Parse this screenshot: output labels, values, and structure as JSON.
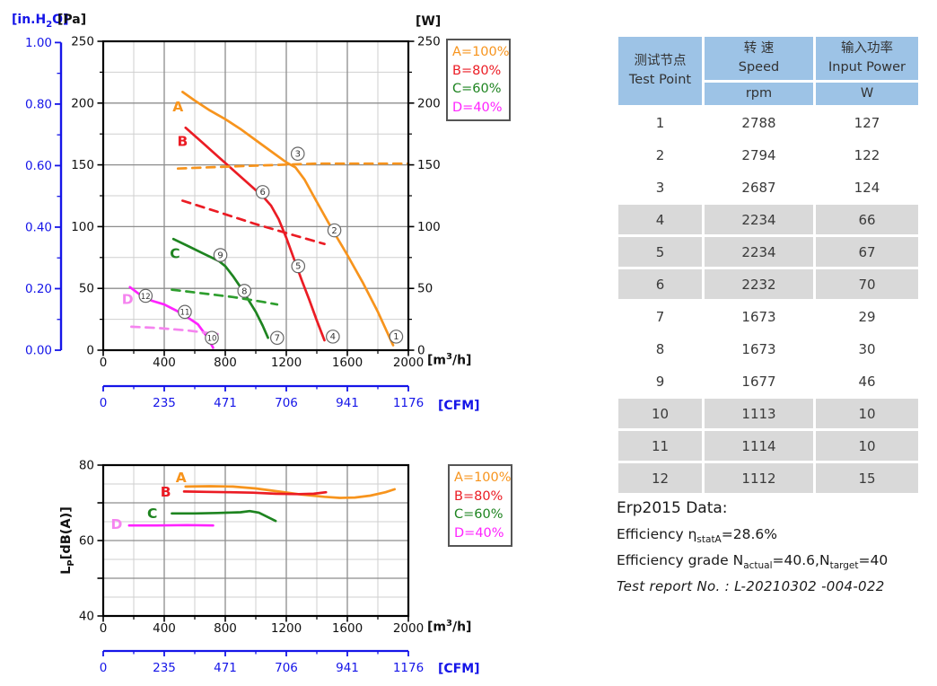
{
  "colors": {
    "blue_axis": "#1515E8",
    "orange": "#F7941D",
    "red": "#EB1C24",
    "green": "#1E8420",
    "magenta": "#FF22FF",
    "magenta_light": "#F584EF",
    "grid_minor": "#CFCFCF",
    "grid_major": "#8D8D8D",
    "table_header_bg": "#9DC3E6",
    "table_row_alt_bg": "#D9D9D9"
  },
  "units": {
    "inh2o_pre": "[in.H",
    "inh2o_sub": "2",
    "inh2o_post": "O]",
    "pa": "[Pa]",
    "w": "[W]",
    "flow_pre": "[m",
    "flow_sup": "3",
    "flow_post": "/h]",
    "cfm": "[CFM]",
    "noise_pre": "L",
    "noise_sub": "P",
    "noise_post": "[dB(A)]"
  },
  "legend": {
    "items": [
      {
        "label": "A=100%",
        "color": "#F7941D"
      },
      {
        "label": "B=80%",
        "color": "#EB1C24"
      },
      {
        "label": "C=60%",
        "color": "#1E8420"
      },
      {
        "label": "D=40%",
        "color": "#FF22FF"
      }
    ]
  },
  "chart_data": [
    {
      "id": "pressure-flow-power",
      "type": "line",
      "x": {
        "label": "[m3/h]",
        "min": 0,
        "max": 2000,
        "major_ticks": [
          0,
          400,
          800,
          1200,
          1600,
          2000
        ],
        "minor_step": 200
      },
      "y_pressure_pa": {
        "label": "[Pa]",
        "min": 0,
        "max": 250,
        "major_ticks": [
          0,
          50,
          100,
          150,
          200,
          250
        ],
        "minor_step": 25
      },
      "y_pressure_inh2o": {
        "label": "[in.H2O]",
        "tick_labels": [
          "0.00",
          "0.20",
          "0.40",
          "0.60",
          "0.80",
          "1.00"
        ],
        "pa_per_inh2o": 249
      },
      "y_power_w": {
        "label": "[W]",
        "min": 0,
        "max": 250,
        "major_ticks": [
          0,
          50,
          100,
          150,
          200,
          250
        ]
      },
      "x_cfm": {
        "label": "[CFM]",
        "ticks": [
          0,
          235,
          471,
          706,
          941,
          1176
        ]
      },
      "grid": "minor+major",
      "series": [
        {
          "name": "A",
          "role": "pressure",
          "line": "solid",
          "color": "#F7941D",
          "points": [
            [
              520,
              209
            ],
            [
              600,
              202
            ],
            [
              700,
              194
            ],
            [
              800,
              187
            ],
            [
              900,
              179
            ],
            [
              1000,
              170
            ],
            [
              1100,
              161
            ],
            [
              1200,
              152
            ],
            [
              1260,
              148
            ],
            [
              1320,
              138
            ],
            [
              1400,
              120
            ],
            [
              1500,
              98
            ],
            [
              1600,
              77
            ],
            [
              1700,
              55
            ],
            [
              1800,
              31
            ],
            [
              1900,
              4
            ]
          ]
        },
        {
          "name": "B",
          "role": "pressure",
          "line": "solid",
          "color": "#EB1C24",
          "points": [
            [
              540,
              180
            ],
            [
              650,
              168
            ],
            [
              750,
              157
            ],
            [
              850,
              146
            ],
            [
              950,
              135
            ],
            [
              1050,
              124
            ],
            [
              1100,
              117
            ],
            [
              1150,
              106
            ],
            [
              1200,
              91
            ],
            [
              1250,
              74
            ],
            [
              1300,
              57
            ],
            [
              1350,
              41
            ],
            [
              1400,
              24
            ],
            [
              1450,
              8
            ]
          ]
        },
        {
          "name": "C",
          "role": "pressure",
          "line": "solid",
          "color": "#1E8420",
          "points": [
            [
              460,
              90
            ],
            [
              560,
              84
            ],
            [
              660,
              78
            ],
            [
              760,
              72
            ],
            [
              800,
              68
            ],
            [
              850,
              60
            ],
            [
              900,
              51
            ],
            [
              950,
              41
            ],
            [
              1000,
              31
            ],
            [
              1045,
              20
            ],
            [
              1080,
              10
            ]
          ]
        },
        {
          "name": "D",
          "role": "pressure",
          "line": "solid",
          "color": "#FF22FF",
          "points": [
            [
              175,
              51
            ],
            [
              240,
              45
            ],
            [
              320,
              40
            ],
            [
              400,
              37
            ],
            [
              480,
              32
            ],
            [
              560,
              26
            ],
            [
              620,
              21
            ],
            [
              680,
              11
            ],
            [
              720,
              2
            ]
          ]
        },
        {
          "name": "A-power",
          "role": "power",
          "line": "dashed",
          "color": "#F7941D",
          "points": [
            [
              490,
              147
            ],
            [
              900,
              149
            ],
            [
              1400,
              151
            ],
            [
              2000,
              151
            ]
          ]
        },
        {
          "name": "B-power",
          "role": "power",
          "line": "dashed",
          "color": "#EB1C24",
          "points": [
            [
              520,
              121
            ],
            [
              750,
              112
            ],
            [
              1000,
              102
            ],
            [
              1250,
              93
            ],
            [
              1450,
              86
            ]
          ]
        },
        {
          "name": "C-power",
          "role": "power",
          "line": "dashed",
          "color": "#2E9E2E",
          "points": [
            [
              450,
              49
            ],
            [
              650,
              46
            ],
            [
              850,
              43
            ],
            [
              1050,
              39
            ],
            [
              1140,
              37
            ]
          ]
        },
        {
          "name": "D-power",
          "role": "power",
          "line": "dashed",
          "color": "#F584EF",
          "points": [
            [
              185,
              19
            ],
            [
              350,
              18
            ],
            [
              550,
              16
            ],
            [
              750,
              13
            ]
          ]
        }
      ],
      "curve_labels": [
        {
          "text": "A",
          "x": 490,
          "y": 197,
          "color": "#F7941D"
        },
        {
          "text": "B",
          "x": 520,
          "y": 169,
          "color": "#EB1C24"
        },
        {
          "text": "C",
          "x": 470,
          "y": 78,
          "color": "#1E8420"
        },
        {
          "text": "D",
          "x": 160,
          "y": 41,
          "color": "#F584EF"
        }
      ],
      "test_point_markers": [
        {
          "n": "1",
          "x": 1920,
          "y": 11
        },
        {
          "n": "2",
          "x": 1515,
          "y": 97
        },
        {
          "n": "3",
          "x": 1275,
          "y": 159
        },
        {
          "n": "4",
          "x": 1505,
          "y": 11
        },
        {
          "n": "5",
          "x": 1278,
          "y": 68
        },
        {
          "n": "6",
          "x": 1045,
          "y": 128
        },
        {
          "n": "7",
          "x": 1140,
          "y": 10
        },
        {
          "n": "8",
          "x": 925,
          "y": 48
        },
        {
          "n": "9",
          "x": 768,
          "y": 77
        },
        {
          "n": "10",
          "x": 712,
          "y": 10
        },
        {
          "n": "11",
          "x": 535,
          "y": 31
        },
        {
          "n": "12",
          "x": 278,
          "y": 44
        }
      ]
    },
    {
      "id": "noise",
      "type": "line",
      "x": {
        "label": "[m3/h]",
        "min": 0,
        "max": 2000,
        "major_ticks": [
          0,
          400,
          800,
          1200,
          1600,
          2000
        ],
        "minor_step": 200
      },
      "y": {
        "label": "Lp[dB(A)]",
        "min": 40,
        "max": 80,
        "labeled_ticks": [
          40,
          60,
          80
        ],
        "grid_major_step": 10,
        "grid_minor_step": 5
      },
      "x_cfm": {
        "label": "[CFM]",
        "ticks": [
          0,
          235,
          471,
          706,
          941,
          1176
        ]
      },
      "series": [
        {
          "name": "A",
          "line": "solid",
          "color": "#F7941D",
          "points": [
            [
              540,
              74.3
            ],
            [
              700,
              74.4
            ],
            [
              850,
              74.3
            ],
            [
              1000,
              73.8
            ],
            [
              1150,
              73.0
            ],
            [
              1300,
              72.2
            ],
            [
              1450,
              71.6
            ],
            [
              1550,
              71.3
            ],
            [
              1650,
              71.4
            ],
            [
              1750,
              71.9
            ],
            [
              1850,
              72.8
            ],
            [
              1910,
              73.6
            ]
          ]
        },
        {
          "name": "B",
          "line": "solid",
          "color": "#EB1C24",
          "points": [
            [
              530,
              73.0
            ],
            [
              680,
              72.9
            ],
            [
              830,
              72.8
            ],
            [
              980,
              72.7
            ],
            [
              1130,
              72.4
            ],
            [
              1280,
              72.3
            ],
            [
              1380,
              72.4
            ],
            [
              1460,
              72.8
            ]
          ]
        },
        {
          "name": "C",
          "line": "solid",
          "color": "#1E8420",
          "points": [
            [
              450,
              67.2
            ],
            [
              600,
              67.2
            ],
            [
              750,
              67.3
            ],
            [
              900,
              67.5
            ],
            [
              960,
              67.8
            ],
            [
              1020,
              67.4
            ],
            [
              1130,
              65.2
            ]
          ]
        },
        {
          "name": "D",
          "line": "solid",
          "color": "#FF22FF",
          "points": [
            [
              170,
              64.0
            ],
            [
              350,
              64.0
            ],
            [
              550,
              64.1
            ],
            [
              720,
              64.0
            ]
          ]
        }
      ],
      "curve_labels": [
        {
          "text": "A",
          "x": 510,
          "y": 76.7,
          "color": "#F7941D"
        },
        {
          "text": "B",
          "x": 410,
          "y": 72.9,
          "color": "#EB1C24"
        },
        {
          "text": "C",
          "x": 322,
          "y": 67.1,
          "color": "#1E8420"
        },
        {
          "text": "D",
          "x": 88,
          "y": 64.3,
          "color": "#F584EF"
        }
      ]
    }
  ],
  "table": {
    "header": {
      "col1_cn": "测试节点",
      "col1_en": "Test Point",
      "col2_cn": "转 速",
      "col2_en": "Speed",
      "col2_unit": "rpm",
      "col3_cn": "输入功率",
      "col3_en": "Input Power",
      "col3_unit": "W"
    },
    "rows": [
      [
        "1",
        "2788",
        "127"
      ],
      [
        "2",
        "2794",
        "122"
      ],
      [
        "3",
        "2687",
        "124"
      ],
      [
        "4",
        "2234",
        "66"
      ],
      [
        "5",
        "2234",
        "67"
      ],
      [
        "6",
        "2232",
        "70"
      ],
      [
        "7",
        "1673",
        "29"
      ],
      [
        "8",
        "1673",
        "30"
      ],
      [
        "9",
        "1677",
        "46"
      ],
      [
        "10",
        "1113",
        "10"
      ],
      [
        "11",
        "1114",
        "10"
      ],
      [
        "12",
        "1112",
        "15"
      ]
    ]
  },
  "erp": {
    "title": "Erp2015  Data:",
    "eff_pre": "Efficiency η",
    "eff_sub": "statA",
    "eff_val": "=28.6%",
    "grade_pre": "Efficiency grade N",
    "grade_sub1": "actual",
    "grade_mid": "=40.6,N",
    "grade_sub2": "target",
    "grade_val": "=40",
    "report": "Test report No.  : L-20210302 -004-022"
  }
}
